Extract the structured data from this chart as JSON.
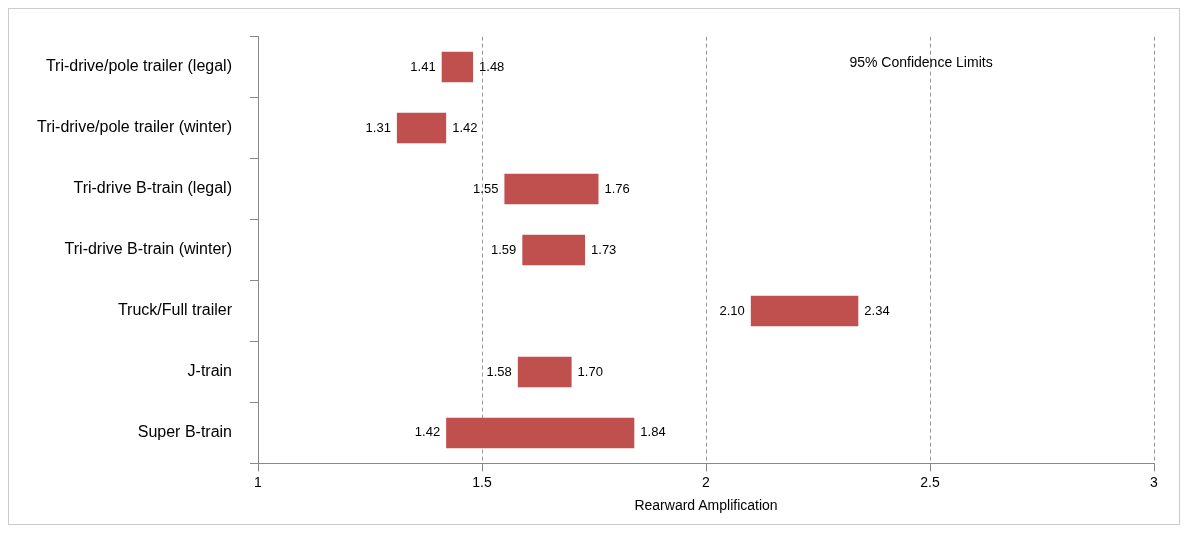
{
  "chart_data": {
    "type": "bar",
    "orientation": "horizontal",
    "xlabel": "Rearward Amplification",
    "categories": [
      "Tri-drive/pole trailer (legal)",
      "Tri-drive/pole trailer (winter)",
      "Tri-drive B-train (legal)",
      "Tri-drive B-train (winter)",
      "Truck/Full trailer",
      "J-train",
      "Super B-train"
    ],
    "base": [
      1.41,
      1.31,
      1.55,
      1.59,
      2.1,
      1.58,
      1.42
    ],
    "values": [
      0.07,
      0.11,
      0.21,
      0.14,
      0.24,
      0.12,
      0.42
    ],
    "color": "#c0504d",
    "xlim": [
      1,
      3
    ],
    "xticks": [
      1,
      1.5,
      2,
      2.5,
      3
    ],
    "grid": "x",
    "annotations": [
      "95% Confidence Limits",
      {
        "text": "1.41",
        "x": 1.41,
        "y": "Tri-drive/pole trailer (legal)"
      },
      {
        "text": "1.48",
        "x": 1.48,
        "y": "Tri-drive/pole trailer (legal)"
      },
      {
        "text": "1.31",
        "x": 1.31,
        "y": "Tri-drive/pole trailer (winter)"
      },
      {
        "text": "1.42",
        "x": 1.42,
        "y": "Tri-drive/pole trailer (winter)"
      },
      {
        "text": "1.55",
        "x": 1.55,
        "y": "Tri-drive B-train (legal)"
      },
      {
        "text": "1.76",
        "x": 1.76,
        "y": "Tri-drive B-train (legal)"
      },
      {
        "text": "1.59",
        "x": 1.59,
        "y": "Tri-drive B-train (winter)"
      },
      {
        "text": "1.73",
        "x": 1.73,
        "y": "Tri-drive B-train (winter)"
      },
      {
        "text": "2.10",
        "x": 2.1,
        "y": "Truck/Full trailer"
      },
      {
        "text": "2.34",
        "x": 2.34,
        "y": "Truck/Full trailer"
      },
      {
        "text": "1.58",
        "x": 1.58,
        "y": "J-train"
      },
      {
        "text": "1.70",
        "x": 1.7,
        "y": "J-train"
      },
      {
        "text": "1.42",
        "x": 1.42,
        "y": "Super B-train"
      },
      {
        "text": "1.84",
        "x": 1.84,
        "y": "Super B-train"
      }
    ]
  }
}
